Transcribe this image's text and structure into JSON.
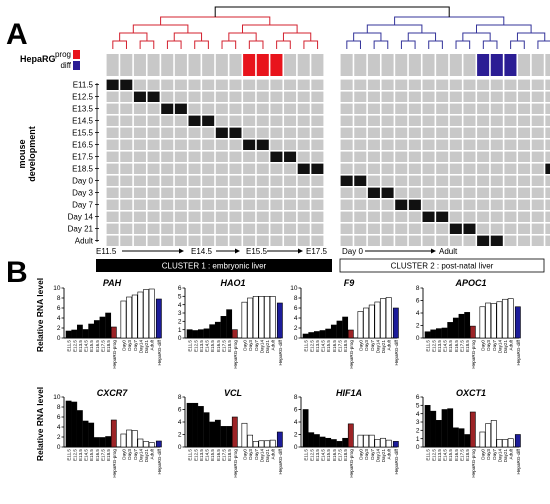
{
  "panel_a": {
    "label": "A",
    "heparg_label": "HepaRG",
    "prog_label": "prog",
    "diff_label": "diff",
    "prog_color": "#e8141c",
    "diff_color": "#2b1d94",
    "y_axis_title_line1": "mouse",
    "y_axis_title_line2": "development",
    "rows": [
      "E11.5",
      "E12.5",
      "E13.5",
      "E14.5",
      "E15.5",
      "E16.5",
      "E17.5",
      "E18.5",
      "Day 0",
      "Day 3",
      "Day 7",
      "Day 14",
      "Day 21",
      "Adult"
    ],
    "cluster1": {
      "n_cols": 16,
      "prog_cols": [
        10,
        11,
        12
      ],
      "black_cells": [
        [
          0,
          0
        ],
        [
          0,
          1
        ],
        [
          1,
          2
        ],
        [
          1,
          3
        ],
        [
          2,
          4
        ],
        [
          2,
          5
        ],
        [
          3,
          6
        ],
        [
          3,
          7
        ],
        [
          4,
          8
        ],
        [
          4,
          9
        ],
        [
          5,
          10
        ],
        [
          5,
          11
        ],
        [
          6,
          12
        ],
        [
          6,
          13
        ],
        [
          7,
          14
        ],
        [
          7,
          15
        ]
      ],
      "dendro_color": "#d3202e",
      "timeline_start": "E11.5",
      "timeline_labels": [
        "E14.5",
        "E15.5",
        "E17.5"
      ],
      "box_label": "CLUSTER 1 : embryonic liver"
    },
    "cluster2": {
      "n_cols": 16,
      "diff_cols": [
        10,
        11,
        12
      ],
      "black_cells": [
        [
          8,
          0
        ],
        [
          8,
          1
        ],
        [
          9,
          2
        ],
        [
          9,
          3
        ],
        [
          10,
          4
        ],
        [
          10,
          5
        ],
        [
          11,
          6
        ],
        [
          11,
          7
        ],
        [
          12,
          8
        ],
        [
          12,
          9
        ],
        [
          13,
          10
        ],
        [
          13,
          11
        ],
        [
          7,
          15
        ]
      ],
      "dendro_color": "#33339a",
      "timeline_start": "Day 0",
      "timeline_end": "Adult",
      "box_label": "CLUSTER 2 : post-natal liver"
    }
  },
  "panel_b": {
    "label": "B",
    "y_axis_title": "Relative RNA level",
    "bar_colors": {
      "embryo": "#000000",
      "adult": "#ffffff",
      "heparg_prog": "#9c2326",
      "heparg_diff": "#1c1c9a"
    },
    "x_labels": [
      "E11.5",
      "E12.5",
      "E13.5",
      "E14.5",
      "E15.5",
      "E16.5",
      "E17.5",
      "E18.5",
      "HepaRG-prog",
      "Day0",
      "Day3",
      "Day7",
      "Day14",
      "Day21",
      "Adult",
      "HepaRG-diff"
    ],
    "bar_kinds": [
      "embryo",
      "embryo",
      "embryo",
      "embryo",
      "embryo",
      "embryo",
      "embryo",
      "embryo",
      "heparg_prog",
      "adult",
      "adult",
      "adult",
      "adult",
      "adult",
      "adult",
      "heparg_diff"
    ],
    "chart_data": [
      {
        "type": "bar",
        "title": "PAH",
        "ylim": [
          0,
          10
        ],
        "yticks": [
          0,
          2,
          4,
          6,
          8,
          10
        ],
        "values": [
          1.4,
          1.6,
          2.6,
          1.7,
          2.8,
          3.5,
          4.2,
          5.0,
          2.2,
          7.4,
          8.2,
          8.6,
          9.2,
          9.7,
          9.8,
          7.8
        ]
      },
      {
        "type": "bar",
        "title": "HAO1",
        "ylim": [
          0,
          6
        ],
        "yticks": [
          0,
          1,
          2,
          3,
          4,
          5,
          6
        ],
        "values": [
          1.0,
          0.9,
          1.0,
          1.1,
          1.6,
          1.9,
          2.6,
          3.4,
          1.0,
          4.3,
          4.8,
          5.0,
          5.0,
          5.0,
          5.0,
          4.2
        ]
      },
      {
        "type": "bar",
        "title": "F9",
        "ylim": [
          0,
          10
        ],
        "yticks": [
          0,
          2,
          4,
          6,
          8,
          10
        ],
        "values": [
          0.8,
          1.1,
          1.3,
          1.5,
          1.8,
          2.6,
          3.4,
          4.2,
          1.6,
          5.3,
          6.0,
          6.6,
          7.2,
          7.9,
          8.1,
          6.0
        ]
      },
      {
        "type": "bar",
        "title": "APOC1",
        "ylim": [
          0,
          8
        ],
        "yticks": [
          0,
          2,
          4,
          6,
          8
        ],
        "values": [
          1.0,
          1.3,
          1.5,
          1.6,
          2.5,
          3.2,
          3.8,
          4.1,
          1.9,
          5.0,
          5.6,
          5.5,
          5.8,
          6.2,
          6.3,
          5.0
        ]
      },
      {
        "type": "bar",
        "title": "CXCR7",
        "ylim": [
          0,
          10
        ],
        "yticks": [
          0,
          2,
          4,
          6,
          8,
          10
        ],
        "values": [
          9.2,
          9.0,
          7.3,
          5.2,
          4.8,
          1.9,
          1.9,
          2.1,
          5.4,
          2.6,
          3.4,
          3.3,
          1.6,
          1.1,
          0.9,
          1.2
        ]
      },
      {
        "type": "bar",
        "title": "VCL",
        "ylim": [
          0,
          8
        ],
        "yticks": [
          0,
          2,
          4,
          6,
          8
        ],
        "values": [
          7.0,
          7.0,
          6.5,
          5.5,
          4.0,
          4.3,
          3.3,
          3.3,
          4.8,
          3.8,
          1.9,
          0.9,
          1.0,
          1.0,
          1.1,
          2.4
        ]
      },
      {
        "type": "bar",
        "title": "HIF1A",
        "ylim": [
          0,
          8
        ],
        "yticks": [
          0,
          2,
          4,
          6,
          8
        ],
        "values": [
          6.0,
          2.3,
          2.0,
          1.6,
          1.4,
          1.2,
          0.9,
          1.4,
          3.7,
          1.9,
          1.9,
          1.9,
          1.2,
          1.4,
          1.1,
          0.9
        ]
      },
      {
        "type": "bar",
        "title": "OXCT1",
        "ylim": [
          0,
          6
        ],
        "yticks": [
          0,
          1,
          2,
          3,
          4,
          5,
          6
        ],
        "values": [
          5.0,
          4.3,
          3.2,
          4.5,
          4.6,
          2.3,
          2.2,
          1.5,
          4.2,
          1.8,
          2.8,
          3.2,
          0.9,
          0.9,
          1.0,
          1.5
        ]
      }
    ]
  }
}
